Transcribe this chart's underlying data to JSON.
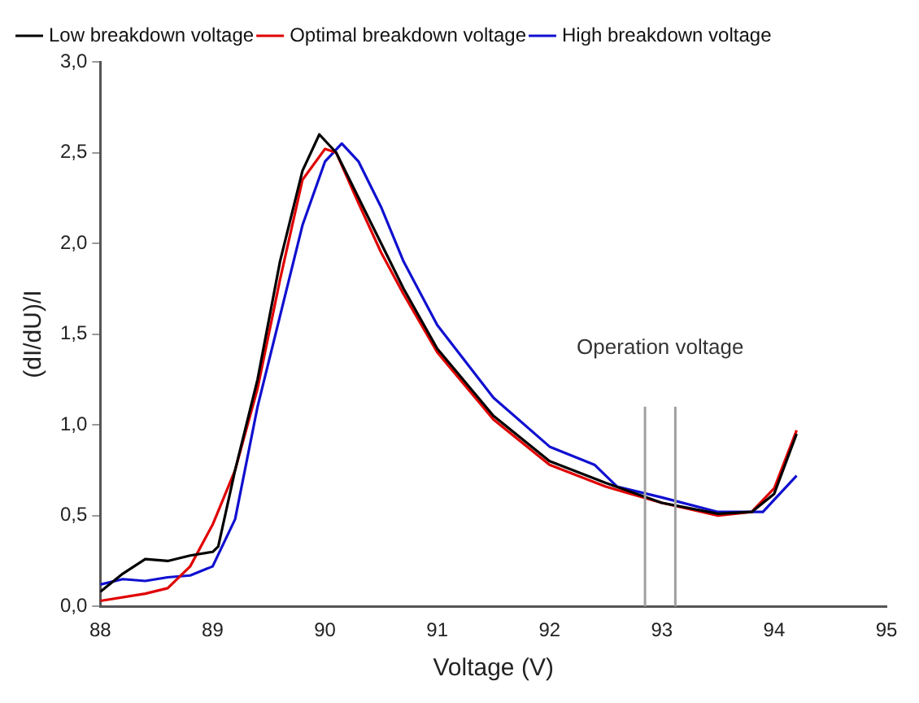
{
  "chart_data": {
    "type": "line",
    "xlabel": "Voltage (V)",
    "ylabel": "(dI/dU)/I",
    "xlim": [
      88,
      95
    ],
    "xticks": [
      88,
      89,
      90,
      91,
      92,
      93,
      94,
      95
    ],
    "ylim": [
      0,
      3
    ],
    "yticks": [
      {
        "value": 0,
        "label": "0,0"
      },
      {
        "value": 0.5,
        "label": "0,5"
      },
      {
        "value": 1,
        "label": "1,0"
      },
      {
        "value": 1.5,
        "label": "1,5"
      },
      {
        "value": 2,
        "label": "2,0"
      },
      {
        "value": 2.5,
        "label": "2,5"
      },
      {
        "value": 3,
        "label": "3,0"
      }
    ],
    "grid": false,
    "legend": "top left",
    "marker": "none",
    "line_style": "solid",
    "series": [
      {
        "name": "Low breakdown voltage",
        "color": "#000000",
        "x": [
          88,
          88.2,
          88.4,
          88.6,
          88.8,
          89,
          89.05,
          89.2,
          89.4,
          89.6,
          89.8,
          89.95,
          90.1,
          90.3,
          90.5,
          90.7,
          91,
          91.5,
          92,
          92.5,
          93,
          93.5,
          93.8,
          94,
          94.2
        ],
        "values": [
          0.08,
          0.18,
          0.26,
          0.25,
          0.28,
          0.3,
          0.33,
          0.75,
          1.25,
          1.9,
          2.4,
          2.6,
          2.5,
          2.25,
          2,
          1.75,
          1.42,
          1.05,
          0.8,
          0.68,
          0.57,
          0.51,
          0.52,
          0.62,
          0.95
        ]
      },
      {
        "name": "Optimal breakdown voltage",
        "color": "#e00000",
        "x": [
          88,
          88.4,
          88.6,
          88.8,
          89,
          89.2,
          89.4,
          89.6,
          89.8,
          90,
          90.1,
          90.3,
          90.5,
          90.7,
          91,
          91.5,
          92,
          92.5,
          93,
          93.5,
          93.8,
          94,
          94.2
        ],
        "values": [
          0.03,
          0.07,
          0.1,
          0.22,
          0.45,
          0.75,
          1.2,
          1.8,
          2.35,
          2.52,
          2.5,
          2.22,
          1.95,
          1.72,
          1.4,
          1.03,
          0.78,
          0.66,
          0.57,
          0.5,
          0.52,
          0.65,
          0.97
        ]
      },
      {
        "name": "High breakdown voltage",
        "color": "#1010d0",
        "x": [
          88,
          88.2,
          88.4,
          88.6,
          88.8,
          89,
          89.2,
          89.4,
          89.6,
          89.8,
          90,
          90.15,
          90.3,
          90.5,
          90.7,
          91,
          91.5,
          92,
          92.4,
          92.6,
          93,
          93.5,
          93.9,
          94.2
        ],
        "values": [
          0.12,
          0.15,
          0.14,
          0.16,
          0.17,
          0.22,
          0.48,
          1.1,
          1.6,
          2.1,
          2.45,
          2.55,
          2.45,
          2.2,
          1.9,
          1.55,
          1.15,
          0.88,
          0.78,
          0.66,
          0.6,
          0.52,
          0.52,
          0.72
        ]
      }
    ],
    "ref_lines": [
      {
        "axis": "x",
        "value": 92.85,
        "color": "#a0a0a0"
      },
      {
        "axis": "x",
        "value": 93.12,
        "color": "#a0a0a0"
      }
    ],
    "annotations": [
      "Operation voltage"
    ]
  }
}
